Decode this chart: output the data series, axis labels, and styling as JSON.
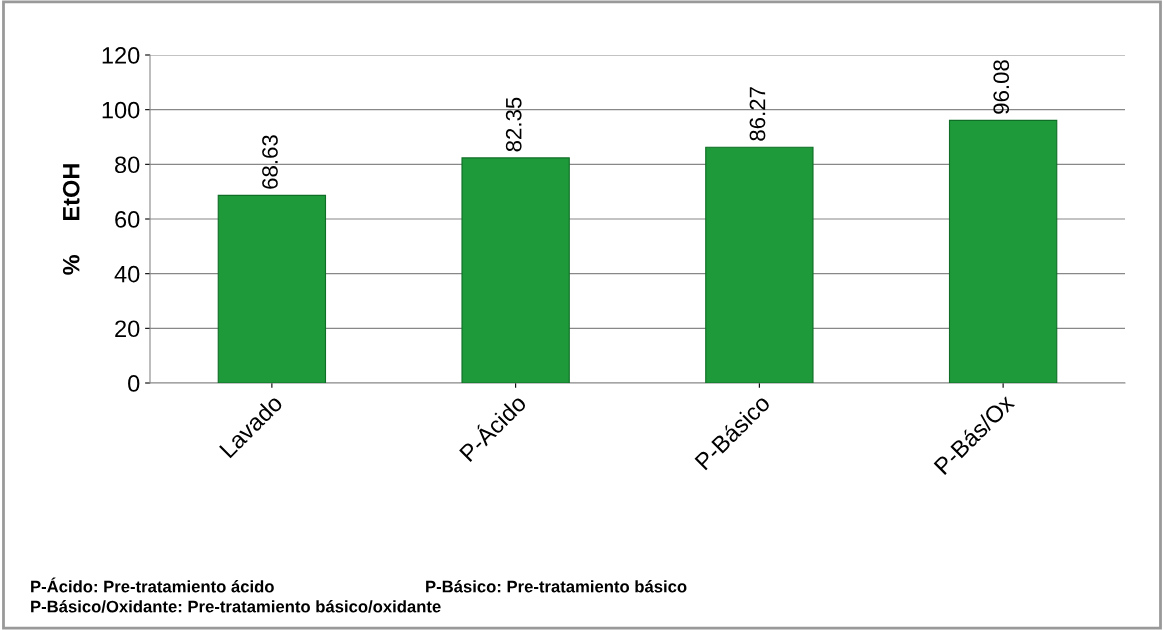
{
  "chart_data": {
    "type": "bar",
    "ylabel": "%     EtOH",
    "categories": [
      "Lavado",
      "P-Ácido",
      "P-Básico",
      "P-Bás/Ox"
    ],
    "values": [
      68.63,
      82.35,
      86.27,
      96.08
    ],
    "color": "#1f9a3a",
    "ylim": [
      0,
      120
    ],
    "yticks": [
      0,
      20,
      40,
      60,
      80,
      100,
      120
    ],
    "grid": "y",
    "data_labels": true,
    "annotations": [
      "P-Ácido: Pre-tratamiento ácido",
      "P-Básico: Pre-tratamiento básico",
      "P-Básico/Oxidante: Pre-tratamiento básico/oxidante"
    ]
  }
}
